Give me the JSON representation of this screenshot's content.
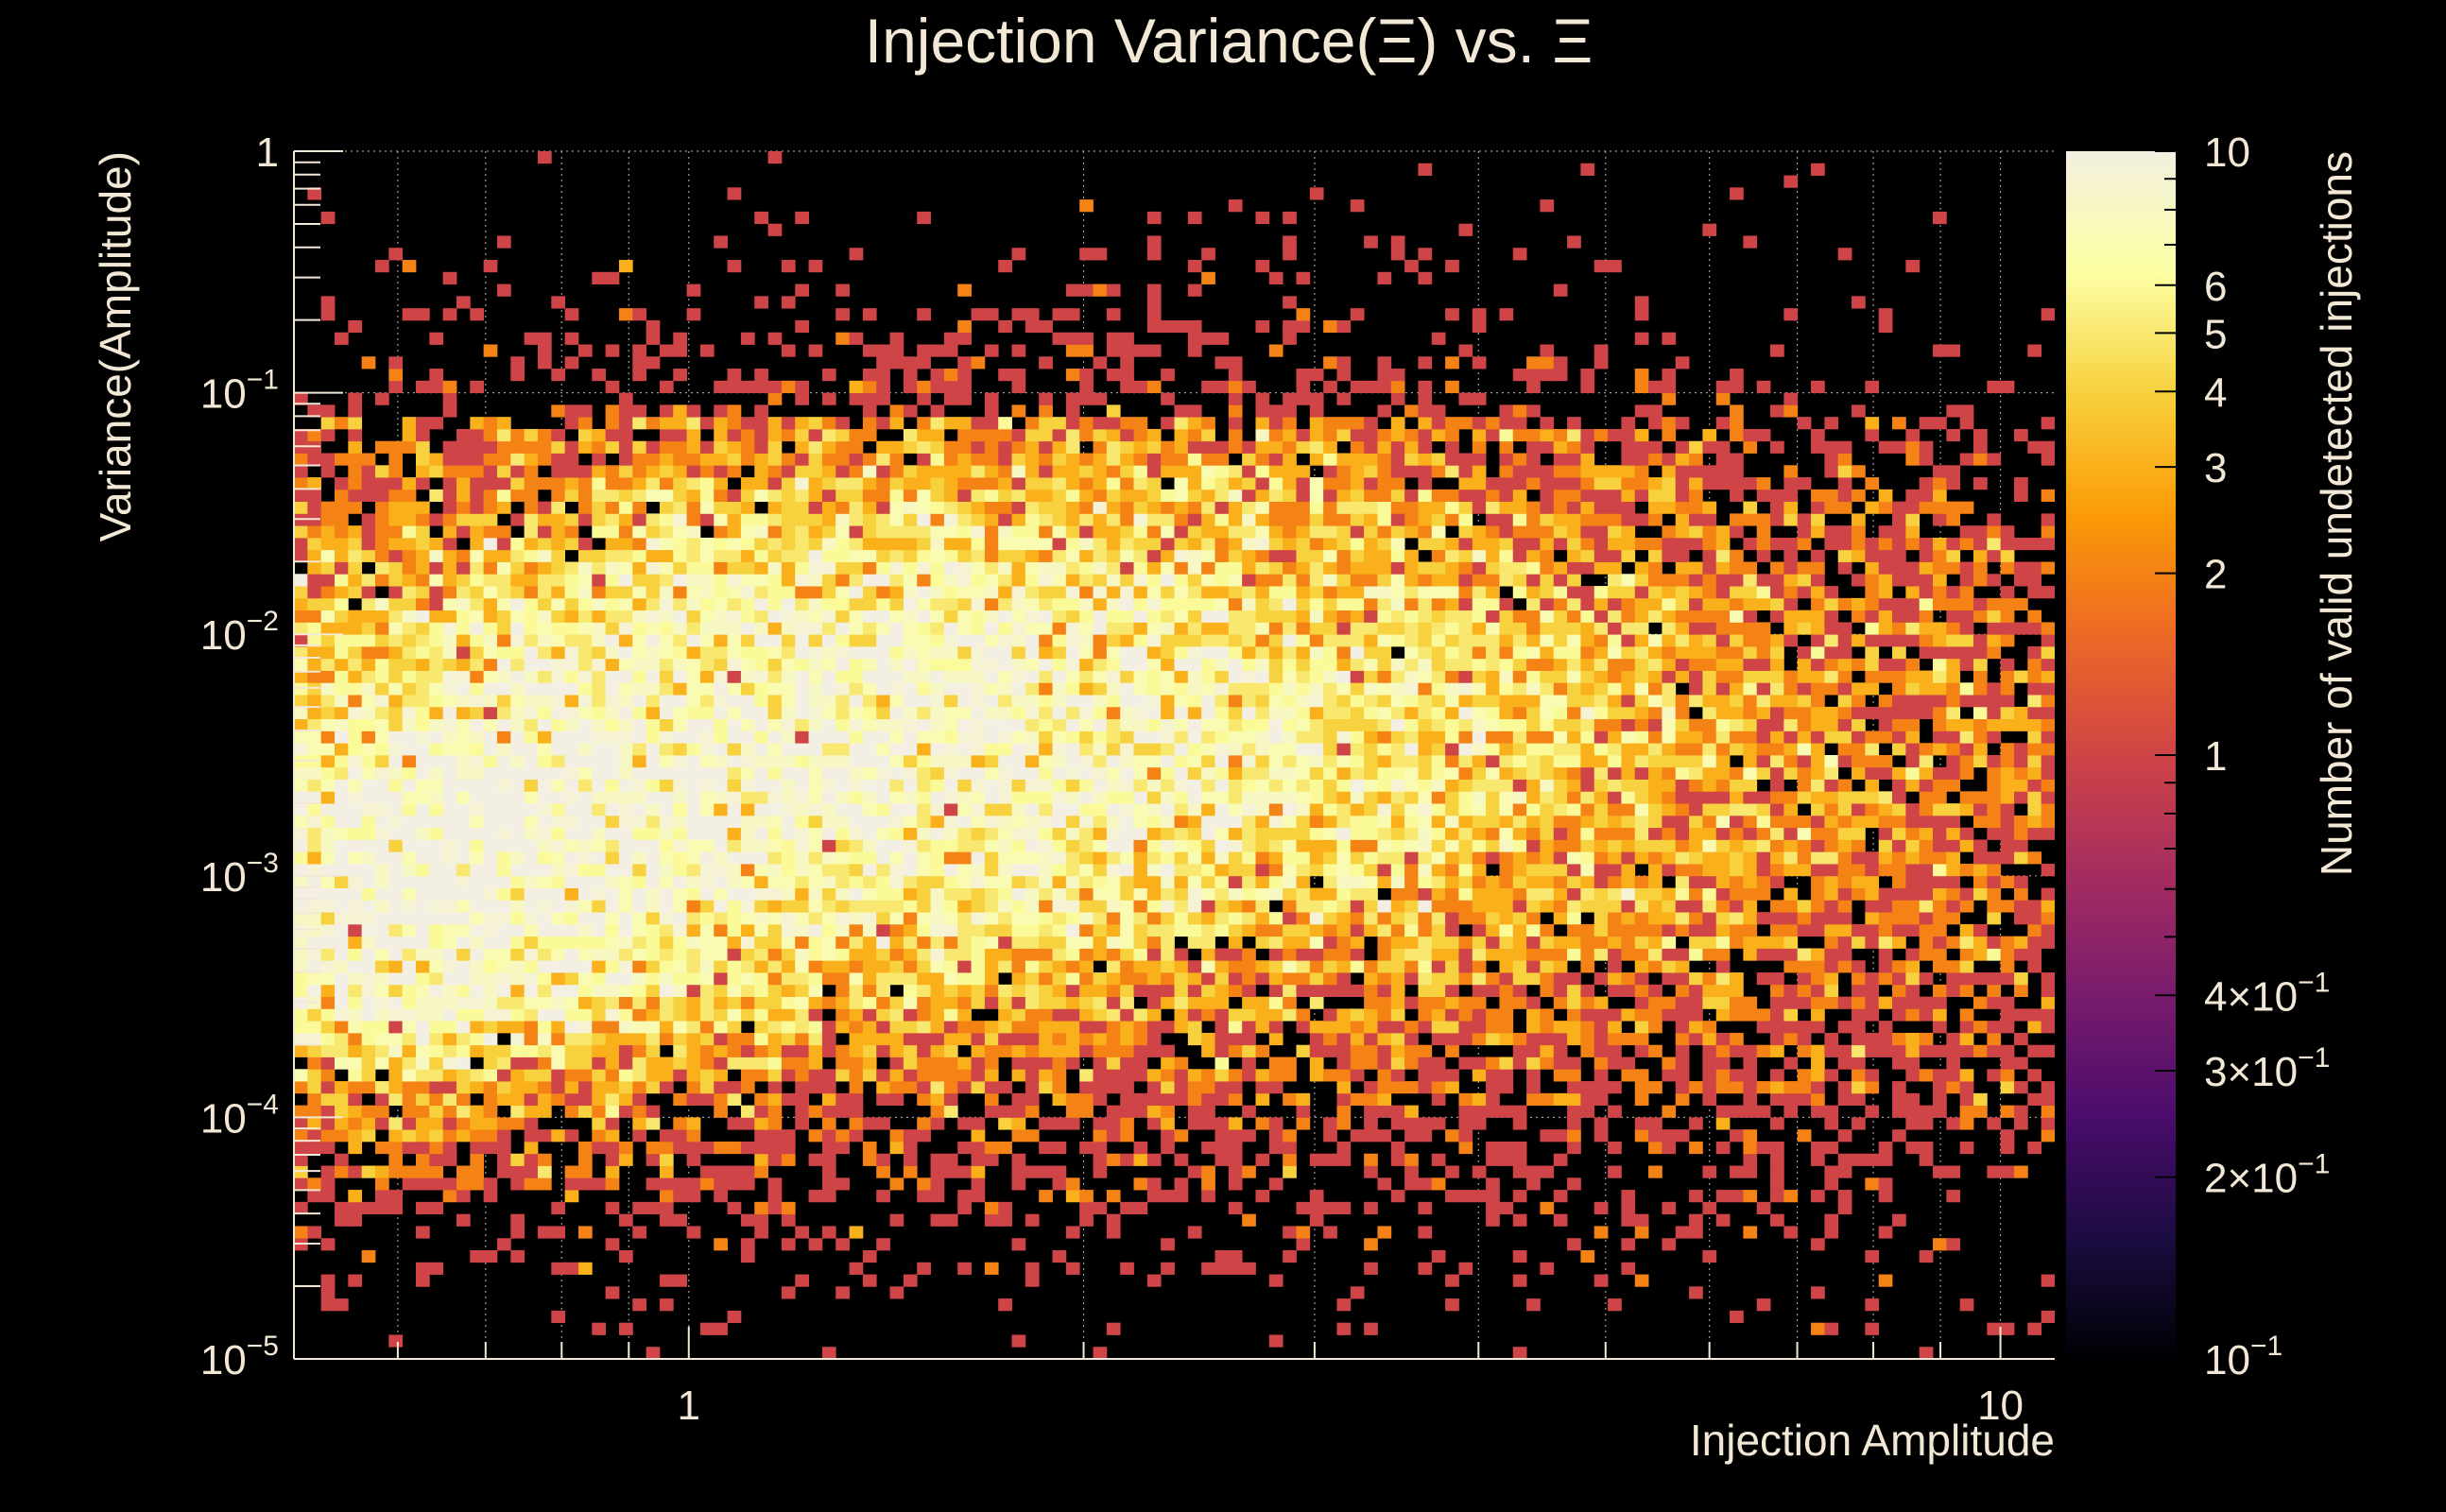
{
  "chart_data": {
    "type": "heatmap",
    "title": "Injection Variance(Ξ) vs. Ξ",
    "xlabel": "Injection Amplitude",
    "ylabel": "Variance(Amplitude)",
    "zlabel": "Number of valid undetected injections",
    "x_scale": "log",
    "y_scale": "log",
    "z_scale": "log",
    "xlim": [
      0.5,
      11
    ],
    "ylim": [
      1e-05,
      1
    ],
    "zlim": [
      0.1,
      10
    ],
    "grid": true,
    "colormap": [
      "#000004",
      "#1b0c41",
      "#4a0c6b",
      "#781c6d",
      "#a52c60",
      "#cf4446",
      "#ed6925",
      "#fb9b06",
      "#f7d13d",
      "#fcffa4",
      "#f3efe2"
    ],
    "x_bins": 130,
    "y_bins": 100,
    "x_ticks": [
      {
        "value": 1,
        "label": "1"
      },
      {
        "value": 10,
        "label": "10"
      }
    ],
    "y_ticks": [
      {
        "value": 1,
        "label": "1",
        "base": "1",
        "exp": ""
      },
      {
        "value": 0.1,
        "label": "10^-1",
        "base": "10",
        "exp": "−1"
      },
      {
        "value": 0.01,
        "label": "10^-2",
        "base": "10",
        "exp": "−2"
      },
      {
        "value": 0.001,
        "label": "10^-3",
        "base": "10",
        "exp": "−3"
      },
      {
        "value": 0.0001,
        "label": "10^-4",
        "base": "10",
        "exp": "−4"
      },
      {
        "value": 1e-05,
        "label": "10^-5",
        "base": "10",
        "exp": "−5"
      }
    ],
    "z_ticks": [
      {
        "value": 10,
        "base": "10",
        "exp": ""
      },
      {
        "value": 6,
        "base": "6",
        "exp": ""
      },
      {
        "value": 5,
        "base": "5",
        "exp": ""
      },
      {
        "value": 4,
        "base": "4",
        "exp": ""
      },
      {
        "value": 3,
        "base": "3",
        "exp": ""
      },
      {
        "value": 2,
        "base": "2",
        "exp": ""
      },
      {
        "value": 1,
        "base": "1",
        "exp": ""
      },
      {
        "value": 0.4,
        "base": "4×10",
        "exp": "−1"
      },
      {
        "value": 0.3,
        "base": "3×10",
        "exp": "−1"
      },
      {
        "value": 0.2,
        "base": "2×10",
        "exp": "−1"
      },
      {
        "value": 0.1,
        "base": "10",
        "exp": "−1"
      }
    ],
    "distribution": {
      "components": [
        {
          "x_center": 0.6,
          "x_sigma": 0.13,
          "y_center": 0.0007,
          "y_sigma": 0.5,
          "weight": 1.0
        },
        {
          "x_center": 1.0,
          "x_sigma": 0.28,
          "y_center": 0.003,
          "y_sigma": 0.75,
          "weight": 0.8
        },
        {
          "x_center": 2.2,
          "x_sigma": 0.3,
          "y_center": 0.006,
          "y_sigma": 0.75,
          "weight": 0.55
        },
        {
          "x_center": 5.5,
          "x_sigma": 0.35,
          "y_center": 0.002,
          "y_sigma": 0.85,
          "weight": 0.25
        }
      ],
      "peak_count": 7.5,
      "noise_floor": 0.025,
      "seed": 12345
    }
  }
}
